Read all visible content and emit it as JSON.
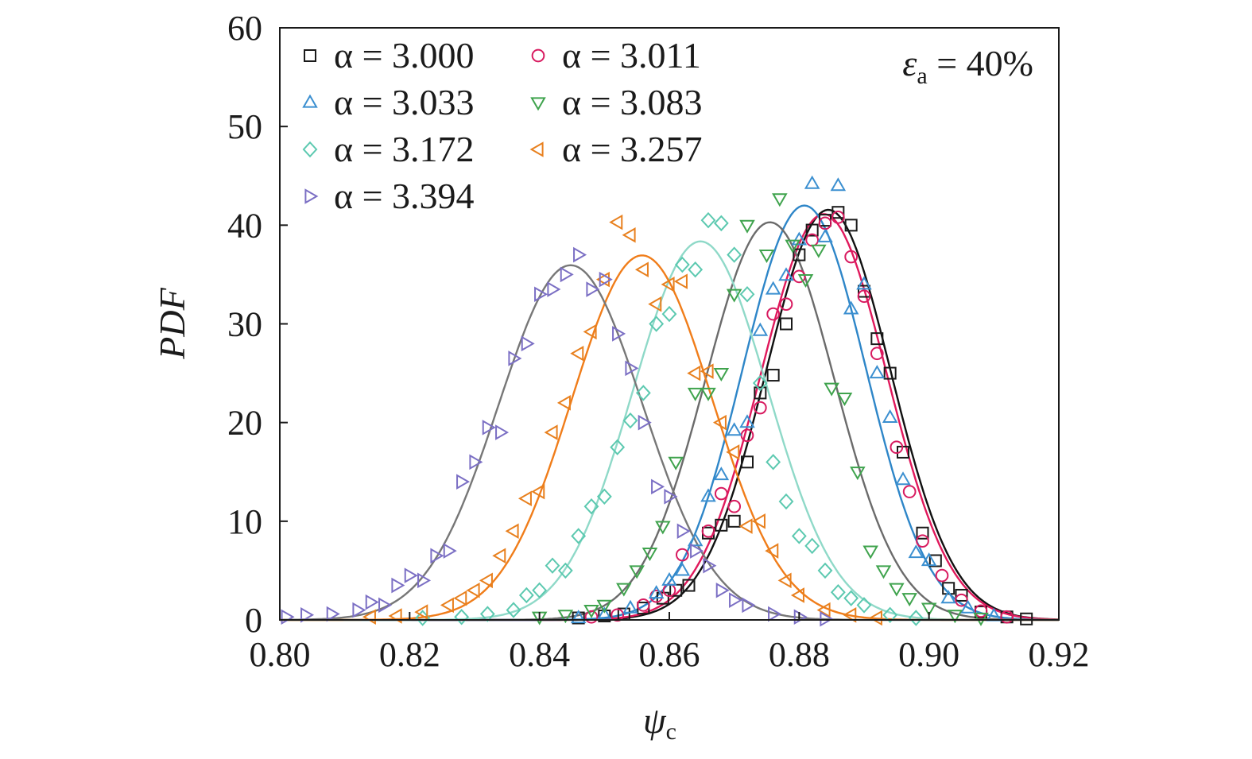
{
  "chart_data": {
    "type": "scatter",
    "xlabel_symbol": "ψ",
    "xlabel_sub": "c",
    "ylabel": "PDF",
    "xlim": [
      0.8,
      0.92
    ],
    "ylim": [
      0,
      60
    ],
    "xticks": [
      "0.80",
      "0.82",
      "0.84",
      "0.86",
      "0.88",
      "0.90",
      "0.92"
    ],
    "xtick_values": [
      0.8,
      0.82,
      0.84,
      0.86,
      0.88,
      0.9,
      0.92
    ],
    "yticks": [
      "0",
      "10",
      "20",
      "30",
      "40",
      "50",
      "60"
    ],
    "ytick_values": [
      0,
      10,
      20,
      30,
      40,
      50,
      60
    ],
    "annotation_symbol": "ε",
    "annotation_sub": "a",
    "annotation_rest": " = 40%",
    "legend_placement": "top-left",
    "grid": false,
    "series": [
      {
        "name": "α = 3.000",
        "marker": "square",
        "marker_color": "#1a1a1a",
        "curve_color": "#111111",
        "fit": {
          "mean": 0.8845,
          "sd": 0.0096
        },
        "points": [
          [
            0.846,
            0.2
          ],
          [
            0.85,
            0.4
          ],
          [
            0.853,
            0.6
          ],
          [
            0.856,
            1.2
          ],
          [
            0.859,
            2.2
          ],
          [
            0.861,
            3.0
          ],
          [
            0.863,
            3.5
          ],
          [
            0.866,
            8.8
          ],
          [
            0.868,
            9.6
          ],
          [
            0.87,
            10.0
          ],
          [
            0.872,
            16.0
          ],
          [
            0.874,
            23.0
          ],
          [
            0.876,
            24.8
          ],
          [
            0.878,
            30.0
          ],
          [
            0.88,
            37.0
          ],
          [
            0.882,
            39.5
          ],
          [
            0.884,
            40.5
          ],
          [
            0.886,
            41.3
          ],
          [
            0.888,
            40.0
          ],
          [
            0.89,
            33.3
          ],
          [
            0.892,
            28.5
          ],
          [
            0.894,
            25.0
          ],
          [
            0.896,
            17.0
          ],
          [
            0.899,
            8.8
          ],
          [
            0.901,
            6.0
          ],
          [
            0.903,
            3.2
          ],
          [
            0.905,
            2.5
          ],
          [
            0.908,
            0.8
          ],
          [
            0.912,
            0.3
          ],
          [
            0.915,
            0.1
          ]
        ]
      },
      {
        "name": "α = 3.011",
        "marker": "circle",
        "marker_color": "#d81b60",
        "curve_color": "#e0195c",
        "fit": {
          "mean": 0.8838,
          "sd": 0.0097
        },
        "points": [
          [
            0.848,
            0.3
          ],
          [
            0.852,
            0.5
          ],
          [
            0.856,
            1.5
          ],
          [
            0.858,
            2.4
          ],
          [
            0.86,
            3.0
          ],
          [
            0.862,
            6.6
          ],
          [
            0.866,
            9.0
          ],
          [
            0.868,
            12.8
          ],
          [
            0.87,
            11.5
          ],
          [
            0.872,
            18.7
          ],
          [
            0.874,
            21.5
          ],
          [
            0.876,
            31.0
          ],
          [
            0.878,
            32.0
          ],
          [
            0.88,
            34.8
          ],
          [
            0.882,
            38.5
          ],
          [
            0.884,
            40.2
          ],
          [
            0.886,
            40.8
          ],
          [
            0.888,
            36.8
          ],
          [
            0.89,
            32.8
          ],
          [
            0.892,
            27.0
          ],
          [
            0.895,
            17.5
          ],
          [
            0.897,
            13.0
          ],
          [
            0.899,
            8.0
          ],
          [
            0.902,
            4.5
          ],
          [
            0.905,
            2.0
          ],
          [
            0.908,
            0.9
          ],
          [
            0.912,
            0.3
          ]
        ]
      },
      {
        "name": "α = 3.033",
        "marker": "triangle-up",
        "marker_color": "#3b8fd0",
        "curve_color": "#2e86c8",
        "fit": {
          "mean": 0.8808,
          "sd": 0.0095
        },
        "points": [
          [
            0.846,
            0.2
          ],
          [
            0.85,
            0.5
          ],
          [
            0.854,
            1.2
          ],
          [
            0.858,
            2.7
          ],
          [
            0.86,
            4.0
          ],
          [
            0.862,
            5.0
          ],
          [
            0.864,
            8.0
          ],
          [
            0.866,
            12.5
          ],
          [
            0.868,
            14.7
          ],
          [
            0.87,
            19.2
          ],
          [
            0.872,
            20.0
          ],
          [
            0.874,
            29.3
          ],
          [
            0.876,
            33.5
          ],
          [
            0.878,
            34.9
          ],
          [
            0.88,
            38.5
          ],
          [
            0.882,
            44.2
          ],
          [
            0.884,
            38.8
          ],
          [
            0.886,
            44.0
          ],
          [
            0.888,
            31.5
          ],
          [
            0.89,
            34.0
          ],
          [
            0.892,
            25.0
          ],
          [
            0.894,
            20.5
          ],
          [
            0.896,
            14.2
          ],
          [
            0.898,
            6.8
          ],
          [
            0.9,
            6.0
          ],
          [
            0.903,
            2.2
          ],
          [
            0.906,
            1.2
          ],
          [
            0.91,
            0.4
          ]
        ]
      },
      {
        "name": "α = 3.083",
        "marker": "triangle-down",
        "marker_color": "#3fa34d",
        "curve_color": "#6b6b6b",
        "fit": {
          "mean": 0.8755,
          "sd": 0.0099
        },
        "points": [
          [
            0.84,
            0.3
          ],
          [
            0.844,
            0.5
          ],
          [
            0.848,
            1.0
          ],
          [
            0.85,
            1.5
          ],
          [
            0.853,
            3.2
          ],
          [
            0.855,
            5.0
          ],
          [
            0.857,
            6.8
          ],
          [
            0.859,
            9.5
          ],
          [
            0.861,
            16.0
          ],
          [
            0.864,
            23.0
          ],
          [
            0.866,
            23.0
          ],
          [
            0.868,
            25.0
          ],
          [
            0.87,
            33.0
          ],
          [
            0.872,
            40.0
          ],
          [
            0.875,
            37.0
          ],
          [
            0.877,
            42.7
          ],
          [
            0.879,
            38.0
          ],
          [
            0.881,
            34.5
          ],
          [
            0.883,
            37.5
          ],
          [
            0.885,
            23.5
          ],
          [
            0.887,
            22.5
          ],
          [
            0.889,
            15.0
          ],
          [
            0.891,
            7.0
          ],
          [
            0.893,
            5.0
          ],
          [
            0.895,
            3.2
          ],
          [
            0.897,
            2.2
          ],
          [
            0.9,
            1.2
          ],
          [
            0.904,
            0.5
          ],
          [
            0.908,
            0.2
          ]
        ]
      },
      {
        "name": "α = 3.172",
        "marker": "diamond",
        "marker_color": "#5cc9b0",
        "curve_color": "#8fd9c8",
        "fit": {
          "mean": 0.8648,
          "sd": 0.0104
        },
        "points": [
          [
            0.822,
            0.2
          ],
          [
            0.828,
            0.3
          ],
          [
            0.832,
            0.6
          ],
          [
            0.836,
            1.0
          ],
          [
            0.838,
            2.5
          ],
          [
            0.84,
            3.0
          ],
          [
            0.842,
            5.5
          ],
          [
            0.844,
            5.0
          ],
          [
            0.846,
            8.5
          ],
          [
            0.848,
            11.5
          ],
          [
            0.85,
            12.5
          ],
          [
            0.852,
            17.5
          ],
          [
            0.854,
            20.2
          ],
          [
            0.856,
            23.0
          ],
          [
            0.858,
            30.0
          ],
          [
            0.86,
            31.0
          ],
          [
            0.862,
            36.0
          ],
          [
            0.864,
            35.5
          ],
          [
            0.866,
            40.5
          ],
          [
            0.868,
            40.2
          ],
          [
            0.87,
            37.0
          ],
          [
            0.872,
            33.0
          ],
          [
            0.874,
            24.0
          ],
          [
            0.876,
            16.0
          ],
          [
            0.878,
            12.0
          ],
          [
            0.88,
            8.5
          ],
          [
            0.882,
            7.5
          ],
          [
            0.884,
            5.0
          ],
          [
            0.886,
            2.8
          ],
          [
            0.888,
            2.2
          ],
          [
            0.89,
            1.5
          ],
          [
            0.894,
            0.5
          ],
          [
            0.898,
            0.2
          ]
        ]
      },
      {
        "name": "α = 3.257",
        "marker": "triangle-left",
        "marker_color": "#e8801e",
        "curve_color": "#f07d1a",
        "fit": {
          "mean": 0.8558,
          "sd": 0.0108
        },
        "points": [
          [
            0.814,
            0.3
          ],
          [
            0.818,
            0.4
          ],
          [
            0.822,
            0.8
          ],
          [
            0.826,
            1.5
          ],
          [
            0.828,
            2.2
          ],
          [
            0.83,
            3.0
          ],
          [
            0.832,
            4.0
          ],
          [
            0.834,
            6.5
          ],
          [
            0.836,
            9.0
          ],
          [
            0.838,
            12.3
          ],
          [
            0.84,
            13.0
          ],
          [
            0.842,
            19.0
          ],
          [
            0.844,
            22.0
          ],
          [
            0.846,
            27.0
          ],
          [
            0.848,
            29.2
          ],
          [
            0.85,
            34.5
          ],
          [
            0.852,
            40.3
          ],
          [
            0.854,
            39.0
          ],
          [
            0.856,
            35.5
          ],
          [
            0.858,
            32.0
          ],
          [
            0.86,
            34.0
          ],
          [
            0.862,
            34.3
          ],
          [
            0.864,
            25.0
          ],
          [
            0.866,
            25.2
          ],
          [
            0.868,
            20.0
          ],
          [
            0.87,
            17.0
          ],
          [
            0.872,
            9.5
          ],
          [
            0.874,
            10.0
          ],
          [
            0.876,
            7.0
          ],
          [
            0.878,
            4.0
          ],
          [
            0.88,
            2.5
          ],
          [
            0.884,
            1.0
          ],
          [
            0.888,
            0.5
          ],
          [
            0.892,
            0.2
          ]
        ]
      },
      {
        "name": "α = 3.394",
        "marker": "triangle-right",
        "marker_color": "#7b6fc4",
        "curve_color": "#777777",
        "fit": {
          "mean": 0.8448,
          "sd": 0.0111
        },
        "points": [
          [
            0.801,
            0.3
          ],
          [
            0.804,
            0.5
          ],
          [
            0.808,
            0.6
          ],
          [
            0.812,
            1.0
          ],
          [
            0.814,
            1.8
          ],
          [
            0.816,
            1.5
          ],
          [
            0.818,
            3.5
          ],
          [
            0.82,
            4.5
          ],
          [
            0.822,
            4.0
          ],
          [
            0.824,
            6.5
          ],
          [
            0.826,
            7.0
          ],
          [
            0.828,
            14.0
          ],
          [
            0.83,
            16.0
          ],
          [
            0.832,
            19.5
          ],
          [
            0.834,
            19.0
          ],
          [
            0.836,
            26.5
          ],
          [
            0.838,
            28.0
          ],
          [
            0.84,
            33.0
          ],
          [
            0.842,
            33.5
          ],
          [
            0.844,
            35.0
          ],
          [
            0.846,
            37.0
          ],
          [
            0.848,
            33.5
          ],
          [
            0.85,
            34.5
          ],
          [
            0.852,
            29.0
          ],
          [
            0.854,
            25.5
          ],
          [
            0.856,
            20.0
          ],
          [
            0.858,
            13.5
          ],
          [
            0.86,
            12.5
          ],
          [
            0.862,
            9.0
          ],
          [
            0.864,
            7.0
          ],
          [
            0.866,
            5.5
          ],
          [
            0.868,
            3.0
          ],
          [
            0.87,
            2.0
          ],
          [
            0.872,
            1.5
          ],
          [
            0.876,
            0.6
          ],
          [
            0.88,
            0.3
          ],
          [
            0.884,
            0.1
          ]
        ]
      }
    ]
  }
}
